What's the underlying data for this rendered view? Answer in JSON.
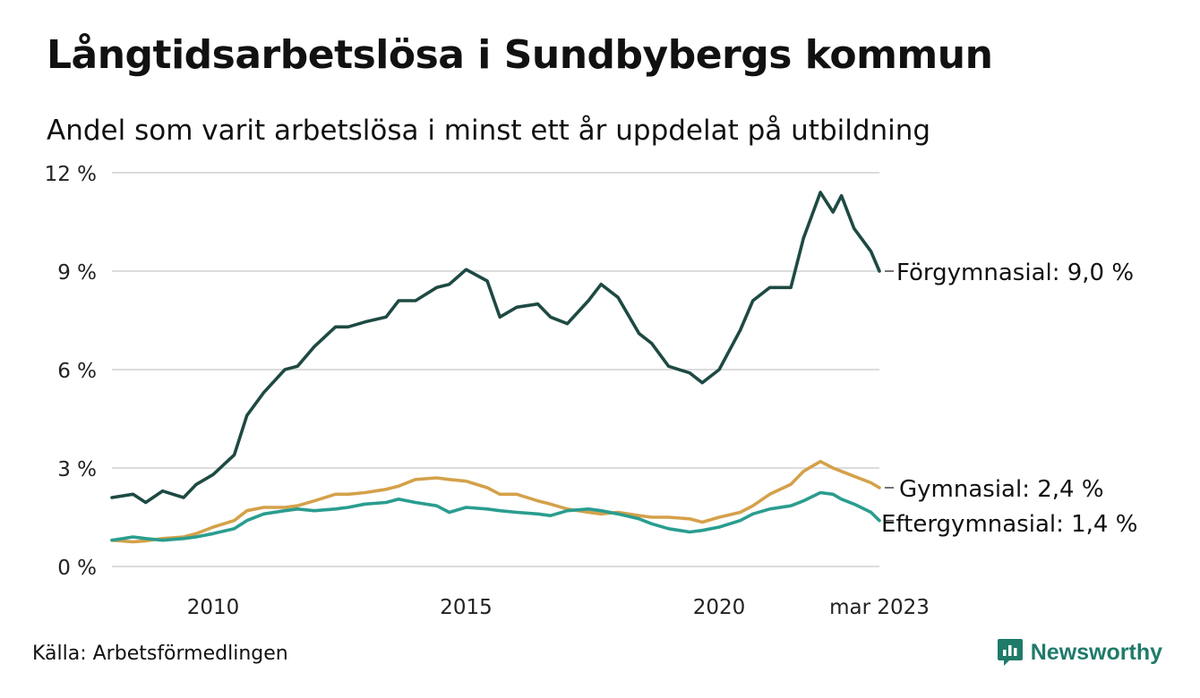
{
  "header": {
    "title": "Långtidsarbetslösa i Sundbybergs kommun",
    "subtitle": "Andel som varit arbetslösa i minst ett år uppdelat på utbildning"
  },
  "footer": {
    "source": "Källa: Arbetsförmedlingen",
    "brand": "Newsworthy",
    "brand_icon": "newsworthy-logo-icon",
    "brand_color": "#1f7a6a"
  },
  "chart_data": {
    "type": "line",
    "ylim": [
      0,
      12
    ],
    "y_ticks": [
      0,
      3,
      6,
      9,
      12
    ],
    "y_tick_labels": [
      "0 %",
      "3 %",
      "6 %",
      "9 %",
      "12 %"
    ],
    "x_range": [
      "2008-01",
      "2023-03"
    ],
    "x_ticks": [
      "2010-01",
      "2015-01",
      "2020-01",
      "2023-03"
    ],
    "x_tick_labels": [
      "2010",
      "2015",
      "2020",
      "mar 2023"
    ],
    "grid": true,
    "legend": "end-labels",
    "series": [
      {
        "name": "Förgymnasial",
        "end_label": "Förgymnasial: 9,0 %",
        "color": "#1e4a43",
        "points": [
          [
            "2008-01",
            2.1
          ],
          [
            "2008-06",
            2.2
          ],
          [
            "2008-09",
            1.95
          ],
          [
            "2009-01",
            2.3
          ],
          [
            "2009-06",
            2.1
          ],
          [
            "2009-09",
            2.5
          ],
          [
            "2010-01",
            2.8
          ],
          [
            "2010-06",
            3.4
          ],
          [
            "2010-09",
            4.6
          ],
          [
            "2011-01",
            5.3
          ],
          [
            "2011-06",
            6.0
          ],
          [
            "2011-09",
            6.1
          ],
          [
            "2012-01",
            6.7
          ],
          [
            "2012-06",
            7.3
          ],
          [
            "2012-09",
            7.3
          ],
          [
            "2013-01",
            7.45
          ],
          [
            "2013-06",
            7.6
          ],
          [
            "2013-09",
            8.1
          ],
          [
            "2014-01",
            8.1
          ],
          [
            "2014-06",
            8.5
          ],
          [
            "2014-09",
            8.6
          ],
          [
            "2015-01",
            9.05
          ],
          [
            "2015-06",
            8.7
          ],
          [
            "2015-09",
            7.6
          ],
          [
            "2016-01",
            7.9
          ],
          [
            "2016-06",
            8.0
          ],
          [
            "2016-09",
            7.6
          ],
          [
            "2017-01",
            7.4
          ],
          [
            "2017-06",
            8.1
          ],
          [
            "2017-09",
            8.6
          ],
          [
            "2018-01",
            8.2
          ],
          [
            "2018-06",
            7.1
          ],
          [
            "2018-09",
            6.8
          ],
          [
            "2019-01",
            6.1
          ],
          [
            "2019-06",
            5.9
          ],
          [
            "2019-09",
            5.6
          ],
          [
            "2020-01",
            6.0
          ],
          [
            "2020-06",
            7.2
          ],
          [
            "2020-09",
            8.1
          ],
          [
            "2021-01",
            8.5
          ],
          [
            "2021-06",
            8.5
          ],
          [
            "2021-09",
            10.0
          ],
          [
            "2022-01",
            11.4
          ],
          [
            "2022-04",
            10.8
          ],
          [
            "2022-06",
            11.3
          ],
          [
            "2022-09",
            10.3
          ],
          [
            "2023-01",
            9.6
          ],
          [
            "2023-03",
            9.0
          ]
        ]
      },
      {
        "name": "Gymnasial",
        "end_label": "Gymnasial: 2,4 %",
        "color": "#d4a14a",
        "points": [
          [
            "2008-01",
            0.8
          ],
          [
            "2008-06",
            0.75
          ],
          [
            "2008-09",
            0.78
          ],
          [
            "2009-01",
            0.85
          ],
          [
            "2009-06",
            0.9
          ],
          [
            "2009-09",
            1.0
          ],
          [
            "2010-01",
            1.2
          ],
          [
            "2010-06",
            1.4
          ],
          [
            "2010-09",
            1.7
          ],
          [
            "2011-01",
            1.8
          ],
          [
            "2011-06",
            1.8
          ],
          [
            "2011-09",
            1.85
          ],
          [
            "2012-01",
            2.0
          ],
          [
            "2012-06",
            2.2
          ],
          [
            "2012-09",
            2.2
          ],
          [
            "2013-01",
            2.25
          ],
          [
            "2013-06",
            2.35
          ],
          [
            "2013-09",
            2.45
          ],
          [
            "2014-01",
            2.65
          ],
          [
            "2014-06",
            2.7
          ],
          [
            "2014-09",
            2.65
          ],
          [
            "2015-01",
            2.6
          ],
          [
            "2015-06",
            2.4
          ],
          [
            "2015-09",
            2.2
          ],
          [
            "2016-01",
            2.2
          ],
          [
            "2016-06",
            2.0
          ],
          [
            "2016-09",
            1.9
          ],
          [
            "2017-01",
            1.75
          ],
          [
            "2017-06",
            1.65
          ],
          [
            "2017-09",
            1.6
          ],
          [
            "2018-01",
            1.65
          ],
          [
            "2018-06",
            1.55
          ],
          [
            "2018-09",
            1.5
          ],
          [
            "2019-01",
            1.5
          ],
          [
            "2019-06",
            1.45
          ],
          [
            "2019-09",
            1.35
          ],
          [
            "2020-01",
            1.5
          ],
          [
            "2020-06",
            1.65
          ],
          [
            "2020-09",
            1.85
          ],
          [
            "2021-01",
            2.2
          ],
          [
            "2021-06",
            2.5
          ],
          [
            "2021-09",
            2.9
          ],
          [
            "2022-01",
            3.2
          ],
          [
            "2022-04",
            3.0
          ],
          [
            "2022-06",
            2.9
          ],
          [
            "2022-09",
            2.75
          ],
          [
            "2023-01",
            2.55
          ],
          [
            "2023-03",
            2.4
          ]
        ]
      },
      {
        "name": "Eftergymnasial",
        "end_label": "Eftergymnasial: 1,4 %",
        "color": "#2a9d8f",
        "points": [
          [
            "2008-01",
            0.8
          ],
          [
            "2008-06",
            0.9
          ],
          [
            "2008-09",
            0.85
          ],
          [
            "2009-01",
            0.8
          ],
          [
            "2009-06",
            0.85
          ],
          [
            "2009-09",
            0.9
          ],
          [
            "2010-01",
            1.0
          ],
          [
            "2010-06",
            1.15
          ],
          [
            "2010-09",
            1.4
          ],
          [
            "2011-01",
            1.6
          ],
          [
            "2011-06",
            1.7
          ],
          [
            "2011-09",
            1.75
          ],
          [
            "2012-01",
            1.7
          ],
          [
            "2012-06",
            1.75
          ],
          [
            "2012-09",
            1.8
          ],
          [
            "2013-01",
            1.9
          ],
          [
            "2013-06",
            1.95
          ],
          [
            "2013-09",
            2.05
          ],
          [
            "2014-01",
            1.95
          ],
          [
            "2014-06",
            1.85
          ],
          [
            "2014-09",
            1.65
          ],
          [
            "2015-01",
            1.8
          ],
          [
            "2015-06",
            1.75
          ],
          [
            "2015-09",
            1.7
          ],
          [
            "2016-01",
            1.65
          ],
          [
            "2016-06",
            1.6
          ],
          [
            "2016-09",
            1.55
          ],
          [
            "2017-01",
            1.7
          ],
          [
            "2017-06",
            1.75
          ],
          [
            "2017-09",
            1.7
          ],
          [
            "2018-01",
            1.6
          ],
          [
            "2018-06",
            1.45
          ],
          [
            "2018-09",
            1.3
          ],
          [
            "2019-01",
            1.15
          ],
          [
            "2019-06",
            1.05
          ],
          [
            "2019-09",
            1.1
          ],
          [
            "2020-01",
            1.2
          ],
          [
            "2020-06",
            1.4
          ],
          [
            "2020-09",
            1.6
          ],
          [
            "2021-01",
            1.75
          ],
          [
            "2021-06",
            1.85
          ],
          [
            "2021-09",
            2.0
          ],
          [
            "2022-01",
            2.25
          ],
          [
            "2022-04",
            2.2
          ],
          [
            "2022-06",
            2.05
          ],
          [
            "2022-09",
            1.9
          ],
          [
            "2023-01",
            1.65
          ],
          [
            "2023-03",
            1.4
          ]
        ]
      }
    ]
  }
}
